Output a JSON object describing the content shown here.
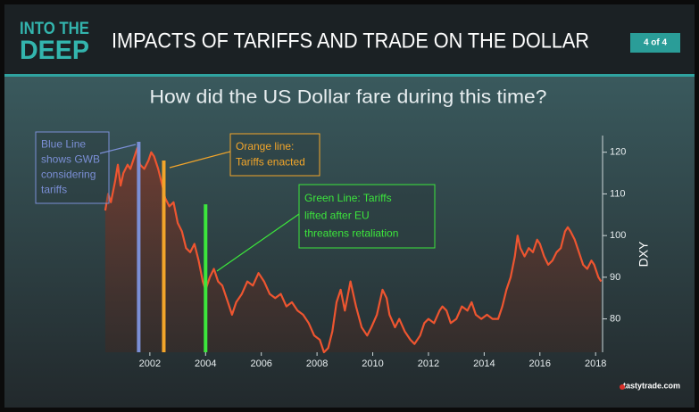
{
  "header": {
    "logo_lines": [
      "INTO THE",
      "DEEP"
    ],
    "title": "IMPACTS OF TARIFFS AND TRADE ON THE DOLLAR",
    "badge": "4 of 4"
  },
  "footer": {
    "brand": "tastytrade.com"
  },
  "chart_data": {
    "type": "line",
    "title": "How did the US Dollar fare during this time?",
    "y_label": "DXY",
    "xlim": [
      2000.37,
      2018.25
    ],
    "xticks": [
      2002,
      2004,
      2006,
      2008,
      2010,
      2012,
      2014,
      2016,
      2018
    ],
    "ylim": [
      72,
      124
    ],
    "yticks": [
      80,
      90,
      100,
      110,
      120
    ],
    "x": [
      2000.4,
      2000.5,
      2000.6,
      2000.75,
      2000.85,
      2000.95,
      2001.05,
      2001.2,
      2001.3,
      2001.45,
      2001.55,
      2001.65,
      2001.8,
      2001.95,
      2002.05,
      2002.15,
      2002.3,
      2002.45,
      2002.55,
      2002.7,
      2002.85,
      2003.0,
      2003.15,
      2003.3,
      2003.45,
      2003.6,
      2003.75,
      2003.9,
      2004.0,
      2004.15,
      2004.3,
      2004.45,
      2004.6,
      2004.8,
      2004.95,
      2005.1,
      2005.3,
      2005.5,
      2005.7,
      2005.9,
      2006.1,
      2006.3,
      2006.5,
      2006.7,
      2006.9,
      2007.1,
      2007.3,
      2007.5,
      2007.7,
      2007.9,
      2008.1,
      2008.25,
      2008.4,
      2008.55,
      2008.7,
      2008.85,
      2009.0,
      2009.2,
      2009.4,
      2009.6,
      2009.8,
      2009.95,
      2010.15,
      2010.35,
      2010.5,
      2010.6,
      2010.8,
      2010.95,
      2011.15,
      2011.35,
      2011.5,
      2011.7,
      2011.85,
      2012.0,
      2012.2,
      2012.4,
      2012.5,
      2012.65,
      2012.8,
      2013.0,
      2013.2,
      2013.4,
      2013.55,
      2013.7,
      2013.9,
      2014.1,
      2014.3,
      2014.5,
      2014.65,
      2014.8,
      2014.95,
      2015.1,
      2015.2,
      2015.3,
      2015.45,
      2015.6,
      2015.75,
      2015.9,
      2016.0,
      2016.15,
      2016.3,
      2016.45,
      2016.6,
      2016.75,
      2016.9,
      2017.0,
      2017.1,
      2017.25,
      2017.4,
      2017.55,
      2017.7,
      2017.85,
      2017.95,
      2018.1,
      2018.2
    ],
    "series": [
      {
        "name": "DXY",
        "color": "#ee5530",
        "values": [
          106,
          110,
          108,
          113,
          117,
          112,
          115,
          117,
          116,
          119,
          121,
          117,
          116,
          118,
          120,
          119,
          116,
          112,
          109,
          107,
          108,
          103,
          101,
          97,
          96,
          98,
          94,
          89,
          87,
          90,
          92,
          89,
          88,
          84,
          81,
          84,
          86,
          89,
          88,
          91,
          89,
          86,
          85,
          86,
          83,
          84,
          82,
          81,
          79,
          76,
          75,
          72,
          73,
          77,
          84,
          87,
          82,
          89,
          83,
          78,
          76,
          78,
          81,
          87,
          85,
          81,
          78,
          80,
          77,
          75,
          74,
          76,
          79,
          80,
          79,
          82,
          83,
          82,
          79,
          80,
          83,
          82,
          84,
          81,
          80,
          81,
          80,
          80,
          83,
          87,
          90,
          95,
          100,
          97,
          95,
          97,
          96,
          99,
          98,
          95,
          93,
          94,
          96,
          97,
          101,
          102,
          101,
          99,
          96,
          93,
          92,
          94,
          93,
          90,
          89
        ]
      }
    ],
    "reference_lines": [
      {
        "x": 2001.6,
        "top": 122.5,
        "color": "#7b8fd6"
      },
      {
        "x": 2002.5,
        "top": 118,
        "color": "#f2a52a"
      },
      {
        "x": 2004.0,
        "top": 107.5,
        "color": "#3ce63c"
      }
    ],
    "annotations": [
      {
        "lines": [
          "Blue Line",
          "shows GWB",
          "considering",
          "tariffs"
        ],
        "color": "#7b8fd6"
      },
      {
        "lines": [
          "Orange line:",
          "Tariffs enacted"
        ],
        "color": "#f2a52a"
      },
      {
        "lines": [
          "Green Line: Tariffs",
          "lifted after EU",
          "threatens retaliation"
        ],
        "color": "#3ce63c"
      }
    ]
  }
}
